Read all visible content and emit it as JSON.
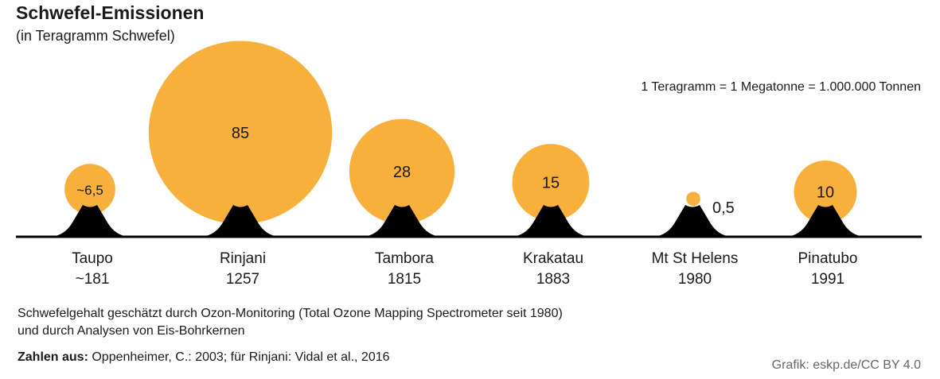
{
  "chart_data": {
    "type": "bubble",
    "title": "Schwefel-Emissionen",
    "subtitle": "(in Teragramm Schwefel)",
    "unit_note": "1 Teragramm = 1 Megatonne = 1.000.000 Tonnen",
    "bubble_color": "#F8B03C",
    "volcano_color": "#000000",
    "items": [
      {
        "name": "Taupo",
        "year": "~181",
        "value": 6.5,
        "label": "~6,5"
      },
      {
        "name": "Rinjani",
        "year": "1257",
        "value": 85,
        "label": "85"
      },
      {
        "name": "Tambora",
        "year": "1815",
        "value": 28,
        "label": "28"
      },
      {
        "name": "Krakatau",
        "year": "1883",
        "value": 15,
        "label": "15"
      },
      {
        "name": "Mt St Helens",
        "year": "1980",
        "value": 0.5,
        "label": "0,5"
      },
      {
        "name": "Pinatubo",
        "year": "1991",
        "value": 10,
        "label": "10"
      }
    ]
  },
  "footer": {
    "note_line1": "Schwefelgehalt geschätzt durch Ozon-Monitoring (Total Ozone Mapping Spectrometer seit 1980)",
    "note_line2": "und durch Analysen von Eis-Bohrkernen",
    "source_label": "Zahlen aus:",
    "source_text": " Oppenheimer, C.: 2003; für Rinjani: Vidal et al., 2016",
    "credit": "Grafik: eskp.de/CC BY 4.0"
  }
}
